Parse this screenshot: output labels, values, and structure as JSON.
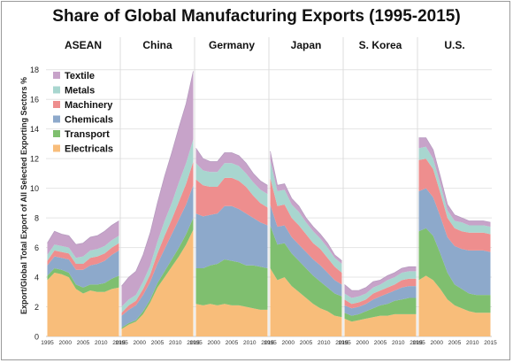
{
  "chart_data": {
    "type": "area",
    "title": "Share of Global Manufacturing Exports (1995-2015)",
    "ylabel": "Export/Global Total Export of All Selected Exporting Sectors %",
    "xlabel": "",
    "ylim": [
      0,
      19
    ],
    "y_ticks": [
      "0",
      "2",
      "4",
      "6",
      "8",
      "10",
      "12",
      "14",
      "16",
      "18"
    ],
    "x_tick_labels": [
      "1995",
      "2000",
      "2005",
      "2010",
      "2015"
    ],
    "legend_position": "top-left",
    "grid": true,
    "series_order_bottom_to_top": [
      "Electricals",
      "Transport",
      "Chemicals",
      "Machinery",
      "Metals",
      "Textile"
    ],
    "legend_order": [
      "Textile",
      "Metals",
      "Machinery",
      "Chemicals",
      "Transport",
      "Electricals"
    ],
    "colors": {
      "Textile": "#c7a3c9",
      "Metals": "#a8d6cf",
      "Machinery": "#ee8e8e",
      "Chemicals": "#8da9cb",
      "Transport": "#7fbf6f",
      "Electricals": "#f8bd7a"
    },
    "years": [
      1995,
      1997,
      1999,
      2001,
      2003,
      2005,
      2007,
      2009,
      2011,
      2013,
      2015
    ],
    "panels": [
      {
        "name": "ASEAN",
        "series": [
          {
            "name": "Electricals",
            "values": [
              3.8,
              4.3,
              4.2,
              4.0,
              3.2,
              2.9,
              3.1,
              3.0,
              3.0,
              3.2,
              3.3
            ]
          },
          {
            "name": "Transport",
            "values": [
              0.3,
              0.3,
              0.3,
              0.3,
              0.3,
              0.4,
              0.4,
              0.5,
              0.6,
              0.7,
              0.8
            ]
          },
          {
            "name": "Chemicals",
            "values": [
              0.7,
              0.8,
              0.8,
              0.9,
              1.0,
              1.2,
              1.3,
              1.4,
              1.5,
              1.6,
              1.7
            ]
          },
          {
            "name": "Machinery",
            "values": [
              0.3,
              0.4,
              0.4,
              0.4,
              0.4,
              0.4,
              0.5,
              0.5,
              0.5,
              0.5,
              0.5
            ]
          },
          {
            "name": "Metals",
            "values": [
              0.4,
              0.4,
              0.4,
              0.4,
              0.4,
              0.5,
              0.5,
              0.5,
              0.5,
              0.5,
              0.5
            ]
          },
          {
            "name": "Textile",
            "values": [
              0.8,
              0.9,
              0.8,
              0.8,
              0.9,
              0.9,
              0.9,
              0.9,
              1.0,
              1.0,
              1.0
            ]
          }
        ]
      },
      {
        "name": "China",
        "series": [
          {
            "name": "Electricals",
            "values": [
              0.5,
              0.8,
              1.0,
              1.5,
              2.3,
              3.3,
              4.0,
              4.7,
              5.4,
              6.2,
              7.2
            ]
          },
          {
            "name": "Transport",
            "values": [
              0.1,
              0.1,
              0.1,
              0.2,
              0.2,
              0.3,
              0.4,
              0.5,
              0.6,
              0.7,
              0.8
            ]
          },
          {
            "name": "Chemicals",
            "values": [
              0.8,
              0.9,
              1.0,
              1.1,
              1.2,
              1.3,
              1.5,
              1.7,
              1.9,
              2.0,
              2.2
            ]
          },
          {
            "name": "Machinery",
            "values": [
              0.2,
              0.3,
              0.3,
              0.4,
              0.5,
              0.7,
              0.9,
              1.0,
              1.2,
              1.4,
              1.6
            ]
          },
          {
            "name": "Metals",
            "values": [
              0.4,
              0.4,
              0.4,
              0.5,
              0.6,
              0.8,
              1.0,
              1.1,
              1.3,
              1.4,
              1.5
            ]
          },
          {
            "name": "Textile",
            "values": [
              1.4,
              1.5,
              1.6,
              1.8,
              2.2,
              2.6,
              3.0,
              3.4,
              3.7,
              4.0,
              4.6
            ]
          }
        ]
      },
      {
        "name": "Germany",
        "series": [
          {
            "name": "Electricals",
            "values": [
              2.2,
              2.1,
              2.2,
              2.1,
              2.2,
              2.1,
              2.1,
              2.0,
              1.9,
              1.8,
              1.8
            ]
          },
          {
            "name": "Transport",
            "values": [
              2.4,
              2.5,
              2.6,
              2.8,
              3.0,
              3.0,
              2.9,
              2.8,
              2.9,
              2.9,
              2.8
            ]
          },
          {
            "name": "Chemicals",
            "values": [
              3.7,
              3.5,
              3.4,
              3.4,
              3.6,
              3.7,
              3.6,
              3.5,
              3.2,
              3.0,
              2.9
            ]
          },
          {
            "name": "Machinery",
            "values": [
              2.3,
              2.1,
              1.9,
              1.8,
              1.9,
              1.9,
              1.9,
              1.8,
              1.5,
              1.3,
              1.2
            ]
          },
          {
            "name": "Metals",
            "values": [
              1.1,
              1.0,
              1.0,
              1.0,
              1.0,
              1.0,
              1.0,
              0.9,
              0.9,
              0.9,
              0.9
            ]
          },
          {
            "name": "Textile",
            "values": [
              1.0,
              0.8,
              0.7,
              0.7,
              0.7,
              0.7,
              0.7,
              0.7,
              0.6,
              0.6,
              0.6
            ]
          }
        ]
      },
      {
        "name": "Japan",
        "series": [
          {
            "name": "Electricals",
            "values": [
              4.6,
              3.8,
              4.0,
              3.4,
              3.0,
              2.6,
              2.2,
              1.9,
              1.7,
              1.4,
              1.3
            ]
          },
          {
            "name": "Transport",
            "values": [
              2.9,
              2.4,
              2.3,
              2.2,
              2.1,
              2.0,
              1.9,
              1.8,
              1.6,
              1.5,
              1.4
            ]
          },
          {
            "name": "Chemicals",
            "values": [
              1.4,
              1.2,
              1.2,
              1.1,
              1.1,
              1.1,
              1.1,
              1.1,
              1.0,
              0.9,
              0.8
            ]
          },
          {
            "name": "Machinery",
            "values": [
              1.8,
              1.4,
              1.4,
              1.3,
              1.3,
              1.2,
              1.1,
              1.1,
              1.0,
              0.9,
              0.8
            ]
          },
          {
            "name": "Metals",
            "values": [
              1.2,
              1.0,
              1.0,
              0.9,
              0.9,
              0.8,
              0.8,
              0.7,
              0.7,
              0.6,
              0.6
            ]
          },
          {
            "name": "Textile",
            "values": [
              0.6,
              0.4,
              0.4,
              0.4,
              0.4,
              0.3,
              0.3,
              0.3,
              0.3,
              0.2,
              0.2
            ]
          }
        ]
      },
      {
        "name": "S. Korea",
        "series": [
          {
            "name": "Electricals",
            "values": [
              1.2,
              1.0,
              1.1,
              1.2,
              1.3,
              1.4,
              1.4,
              1.5,
              1.5,
              1.5,
              1.5
            ]
          },
          {
            "name": "Transport",
            "values": [
              0.4,
              0.4,
              0.4,
              0.5,
              0.6,
              0.7,
              0.8,
              0.9,
              1.0,
              1.1,
              1.1
            ]
          },
          {
            "name": "Chemicals",
            "values": [
              0.5,
              0.5,
              0.5,
              0.5,
              0.6,
              0.6,
              0.7,
              0.7,
              0.8,
              0.8,
              0.8
            ]
          },
          {
            "name": "Machinery",
            "values": [
              0.4,
              0.3,
              0.3,
              0.3,
              0.4,
              0.4,
              0.4,
              0.4,
              0.5,
              0.5,
              0.5
            ]
          },
          {
            "name": "Metals",
            "values": [
              0.4,
              0.4,
              0.4,
              0.4,
              0.4,
              0.4,
              0.5,
              0.5,
              0.5,
              0.5,
              0.5
            ]
          },
          {
            "name": "Textile",
            "values": [
              0.6,
              0.5,
              0.4,
              0.4,
              0.4,
              0.3,
              0.3,
              0.3,
              0.3,
              0.3,
              0.3
            ]
          }
        ]
      },
      {
        "name": "U.S.",
        "series": [
          {
            "name": "Electricals",
            "values": [
              3.8,
              4.1,
              3.8,
              3.2,
              2.5,
              2.1,
              1.9,
              1.7,
              1.6,
              1.6,
              1.6
            ]
          },
          {
            "name": "Transport",
            "values": [
              3.3,
              3.2,
              3.0,
              2.4,
              1.8,
              1.4,
              1.3,
              1.2,
              1.2,
              1.2,
              1.2
            ]
          },
          {
            "name": "Chemicals",
            "values": [
              2.7,
              2.7,
              2.6,
              2.5,
              2.4,
              2.6,
              2.7,
              2.9,
              3.0,
              3.0,
              2.9
            ]
          },
          {
            "name": "Machinery",
            "values": [
              2.1,
              2.0,
              1.9,
              1.6,
              1.3,
              1.2,
              1.2,
              1.2,
              1.2,
              1.2,
              1.2
            ]
          },
          {
            "name": "Metals",
            "values": [
              0.8,
              0.8,
              0.7,
              0.6,
              0.5,
              0.5,
              0.6,
              0.5,
              0.5,
              0.5,
              0.5
            ]
          },
          {
            "name": "Textile",
            "values": [
              0.7,
              0.6,
              0.6,
              0.5,
              0.4,
              0.4,
              0.3,
              0.3,
              0.3,
              0.3,
              0.3
            ]
          }
        ]
      }
    ]
  }
}
